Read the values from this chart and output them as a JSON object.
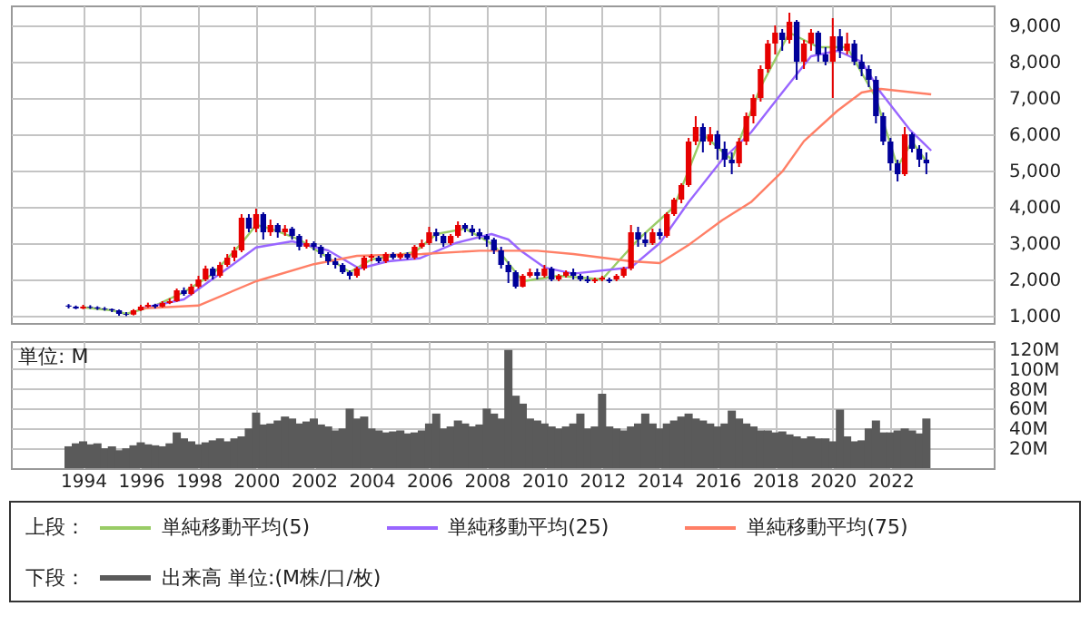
{
  "chart_data": [
    {
      "type": "candlestick",
      "annotations": [
        "上段："
      ],
      "legend": "bottom",
      "grid": true,
      "tick_labels": "y",
      "xlim": [
        "1991-07",
        "2025-08"
      ],
      "xticks": [
        "1994",
        "1996",
        "1998",
        "2000",
        "2002",
        "2004",
        "2006",
        "2008",
        "2010",
        "2012",
        "2014",
        "2016",
        "2018",
        "2020",
        "2022"
      ],
      "ylim": [
        800,
        9550
      ],
      "yticks": [
        {
          "value": 1000,
          "label": "1,000"
        },
        {
          "value": 2000,
          "label": "2,000"
        },
        {
          "value": 3000,
          "label": "3,000"
        },
        {
          "value": 4000,
          "label": "4,000"
        },
        {
          "value": 5000,
          "label": "5,000"
        },
        {
          "value": 6000,
          "label": "6,000"
        },
        {
          "value": 7000,
          "label": "7,000"
        },
        {
          "value": 8000,
          "label": "8,000"
        },
        {
          "value": 9000,
          "label": "9,000"
        }
      ],
      "x": [
        "1993-07",
        "1993-10",
        "1994-01",
        "1994-04",
        "1994-07",
        "1994-10",
        "1995-01",
        "1995-04",
        "1995-07",
        "1995-10",
        "1996-01",
        "1996-04",
        "1996-07",
        "1996-10",
        "1997-01",
        "1997-04",
        "1997-07",
        "1997-10",
        "1998-01",
        "1998-04",
        "1998-07",
        "1998-10",
        "1999-01",
        "1999-04",
        "1999-07",
        "1999-10",
        "2000-01",
        "2000-04",
        "2000-07",
        "2000-10",
        "2001-01",
        "2001-04",
        "2001-07",
        "2001-10",
        "2002-01",
        "2002-04",
        "2002-07",
        "2002-10",
        "2003-01",
        "2003-04",
        "2003-07",
        "2003-10",
        "2004-01",
        "2004-04",
        "2004-07",
        "2004-10",
        "2005-01",
        "2005-04",
        "2005-07",
        "2005-10",
        "2006-01",
        "2006-04",
        "2006-07",
        "2006-10",
        "2007-01",
        "2007-04",
        "2007-07",
        "2007-10",
        "2008-01",
        "2008-04",
        "2008-07",
        "2008-10",
        "2009-01",
        "2009-04",
        "2009-07",
        "2009-10",
        "2010-01",
        "2010-04",
        "2010-07",
        "2010-10",
        "2011-01",
        "2011-04",
        "2011-07",
        "2011-10",
        "2012-01",
        "2012-04",
        "2012-07",
        "2012-10",
        "2013-01",
        "2013-04",
        "2013-07",
        "2013-10",
        "2014-01",
        "2014-04",
        "2014-07",
        "2014-10",
        "2015-01",
        "2015-04",
        "2015-07",
        "2015-10",
        "2016-01",
        "2016-04",
        "2016-07",
        "2016-10",
        "2017-01",
        "2017-04",
        "2017-07",
        "2017-10",
        "2018-01",
        "2018-04",
        "2018-07",
        "2018-10",
        "2019-01",
        "2019-04",
        "2019-07",
        "2019-10",
        "2020-01",
        "2020-04",
        "2020-07",
        "2020-10",
        "2021-01",
        "2021-04",
        "2021-07",
        "2021-10",
        "2022-01",
        "2022-04",
        "2022-07",
        "2022-10",
        "2023-01",
        "2023-04"
      ],
      "ohlc": [
        [
          1280,
          1320,
          1200,
          1250
        ],
        [
          1250,
          1280,
          1180,
          1200
        ],
        [
          1200,
          1300,
          1180,
          1250
        ],
        [
          1250,
          1290,
          1190,
          1230
        ],
        [
          1230,
          1260,
          1160,
          1200
        ],
        [
          1200,
          1240,
          1140,
          1180
        ],
        [
          1180,
          1200,
          1100,
          1150
        ],
        [
          1150,
          1170,
          1000,
          1050
        ],
        [
          1050,
          1100,
          990,
          1030
        ],
        [
          1030,
          1180,
          1010,
          1150
        ],
        [
          1150,
          1300,
          1130,
          1250
        ],
        [
          1250,
          1360,
          1220,
          1300
        ],
        [
          1300,
          1330,
          1200,
          1250
        ],
        [
          1250,
          1400,
          1230,
          1350
        ],
        [
          1350,
          1480,
          1320,
          1400
        ],
        [
          1400,
          1750,
          1380,
          1700
        ],
        [
          1700,
          1780,
          1550,
          1600
        ],
        [
          1600,
          1880,
          1560,
          1800
        ],
        [
          1800,
          2100,
          1750,
          2000
        ],
        [
          2000,
          2380,
          1950,
          2300
        ],
        [
          2300,
          2350,
          2000,
          2100
        ],
        [
          2100,
          2480,
          2050,
          2400
        ],
        [
          2400,
          2700,
          2350,
          2600
        ],
        [
          2600,
          2900,
          2500,
          2800
        ],
        [
          2800,
          3800,
          2750,
          3700
        ],
        [
          3700,
          3800,
          3300,
          3400
        ],
        [
          3400,
          3950,
          3300,
          3800
        ],
        [
          3800,
          3850,
          3100,
          3300
        ],
        [
          3300,
          3650,
          3200,
          3500
        ],
        [
          3500,
          3550,
          3150,
          3300
        ],
        [
          3300,
          3500,
          3200,
          3400
        ],
        [
          3400,
          3450,
          3100,
          3200
        ],
        [
          3200,
          3250,
          2800,
          2900
        ],
        [
          2900,
          3100,
          2850,
          3000
        ],
        [
          3000,
          3050,
          2800,
          2900
        ],
        [
          2900,
          2950,
          2600,
          2700
        ],
        [
          2700,
          2750,
          2400,
          2500
        ],
        [
          2500,
          2600,
          2300,
          2400
        ],
        [
          2400,
          2450,
          2150,
          2200
        ],
        [
          2200,
          2250,
          2000,
          2100
        ],
        [
          2100,
          2350,
          2050,
          2300
        ],
        [
          2300,
          2650,
          2250,
          2600
        ],
        [
          2600,
          2700,
          2500,
          2650
        ],
        [
          2600,
          2650,
          2450,
          2500
        ],
        [
          2500,
          2750,
          2450,
          2700
        ],
        [
          2700,
          2750,
          2550,
          2600
        ],
        [
          2600,
          2750,
          2550,
          2700
        ],
        [
          2700,
          2750,
          2550,
          2600
        ],
        [
          2600,
          2950,
          2550,
          2900
        ],
        [
          2900,
          3100,
          2850,
          3000
        ],
        [
          3000,
          3450,
          2950,
          3300
        ],
        [
          3300,
          3400,
          3050,
          3200
        ],
        [
          3200,
          3250,
          2900,
          3000
        ],
        [
          3000,
          3250,
          2950,
          3200
        ],
        [
          3200,
          3600,
          3150,
          3500
        ],
        [
          3500,
          3550,
          3300,
          3400
        ],
        [
          3400,
          3500,
          3200,
          3300
        ],
        [
          3300,
          3400,
          3100,
          3200
        ],
        [
          3200,
          3250,
          2900,
          3100
        ],
        [
          3100,
          3150,
          2700,
          2800
        ],
        [
          2800,
          2900,
          2300,
          2400
        ],
        [
          2400,
          2500,
          1900,
          2200
        ],
        [
          2200,
          2250,
          1750,
          1800
        ],
        [
          1800,
          2150,
          1780,
          2100
        ],
        [
          2100,
          2300,
          2050,
          2200
        ],
        [
          2200,
          2300,
          2000,
          2100
        ],
        [
          2100,
          2400,
          2050,
          2300
        ],
        [
          2300,
          2350,
          1950,
          2000
        ],
        [
          2000,
          2150,
          1950,
          2100
        ],
        [
          2100,
          2250,
          2050,
          2200
        ],
        [
          2200,
          2300,
          2000,
          2100
        ],
        [
          2100,
          2150,
          1950,
          2000
        ],
        [
          2000,
          2100,
          1900,
          1950
        ],
        [
          1950,
          2050,
          1900,
          2000
        ],
        [
          2000,
          2100,
          1950,
          2050
        ],
        [
          2000,
          2050,
          1900,
          1950
        ],
        [
          2000,
          2150,
          1950,
          2100
        ],
        [
          2100,
          2350,
          2050,
          2300
        ],
        [
          2300,
          3500,
          2250,
          3300
        ],
        [
          3300,
          3450,
          2900,
          3100
        ],
        [
          3100,
          3300,
          2900,
          3000
        ],
        [
          3000,
          3400,
          2950,
          3300
        ],
        [
          3300,
          3400,
          3100,
          3200
        ],
        [
          3200,
          3850,
          3150,
          3800
        ],
        [
          3800,
          4250,
          3750,
          4200
        ],
        [
          4200,
          4650,
          4100,
          4600
        ],
        [
          4600,
          5900,
          4550,
          5800
        ],
        [
          5800,
          6500,
          5700,
          6200
        ],
        [
          6200,
          6300,
          5500,
          5800
        ],
        [
          5800,
          6200,
          5700,
          6000
        ],
        [
          6000,
          6100,
          5300,
          5600
        ],
        [
          5600,
          5800,
          5100,
          5300
        ],
        [
          5300,
          5500,
          4900,
          5200
        ],
        [
          5200,
          5900,
          5100,
          5800
        ],
        [
          5800,
          6600,
          5700,
          6500
        ],
        [
          6500,
          7100,
          6300,
          7000
        ],
        [
          7000,
          7900,
          6900,
          7800
        ],
        [
          7800,
          8600,
          7700,
          8500
        ],
        [
          8500,
          9000,
          8200,
          8800
        ],
        [
          8800,
          8900,
          8300,
          8600
        ],
        [
          8600,
          9350,
          8500,
          9100
        ],
        [
          9100,
          9150,
          7500,
          8000
        ],
        [
          8000,
          8600,
          7800,
          8500
        ],
        [
          8500,
          8900,
          8300,
          8800
        ],
        [
          8800,
          8850,
          8000,
          8200
        ],
        [
          8200,
          8400,
          7900,
          8000
        ],
        [
          8000,
          9200,
          7000,
          8700
        ],
        [
          8700,
          8900,
          8100,
          8300
        ],
        [
          8300,
          8800,
          8200,
          8500
        ],
        [
          8500,
          8600,
          7900,
          8000
        ],
        [
          8000,
          8200,
          7600,
          7800
        ],
        [
          7800,
          7900,
          7300,
          7500
        ],
        [
          7500,
          7600,
          6300,
          6500
        ],
        [
          6500,
          6600,
          5700,
          5800
        ],
        [
          5800,
          5900,
          5000,
          5200
        ],
        [
          5200,
          5300,
          4700,
          4900
        ],
        [
          4900,
          6200,
          4850,
          6000
        ],
        [
          6000,
          6050,
          5500,
          5600
        ],
        [
          5600,
          5700,
          5100,
          5300
        ],
        [
          5300,
          5500,
          4900,
          5200
        ]
      ],
      "colors": [
        "#000099",
        "#000099",
        "#e60000",
        "#000099",
        "#000099",
        "#000099",
        "#000099",
        "#000099",
        "#000099",
        "#e60000",
        "#e60000",
        "#e60000",
        "#000099",
        "#e60000",
        "#e60000",
        "#e60000",
        "#000099",
        "#e60000",
        "#e60000",
        "#e60000",
        "#000099",
        "#e60000",
        "#e60000",
        "#e60000",
        "#e60000",
        "#000099",
        "#e60000",
        "#000099",
        "#e60000",
        "#000099",
        "#e60000",
        "#000099",
        "#000099",
        "#e60000",
        "#000099",
        "#000099",
        "#000099",
        "#000099",
        "#000099",
        "#000099",
        "#e60000",
        "#e60000",
        "#e60000",
        "#000099",
        "#e60000",
        "#000099",
        "#e60000",
        "#000099",
        "#e60000",
        "#e60000",
        "#e60000",
        "#000099",
        "#000099",
        "#e60000",
        "#e60000",
        "#000099",
        "#000099",
        "#000099",
        "#000099",
        "#000099",
        "#000099",
        "#000099",
        "#000099",
        "#e60000",
        "#e60000",
        "#000099",
        "#e60000",
        "#000099",
        "#e60000",
        "#e60000",
        "#000099",
        "#000099",
        "#000099",
        "#e60000",
        "#e60000",
        "#000099",
        "#e60000",
        "#e60000",
        "#e60000",
        "#000099",
        "#000099",
        "#e60000",
        "#000099",
        "#e60000",
        "#e60000",
        "#e60000",
        "#e60000",
        "#e60000",
        "#000099",
        "#e60000",
        "#000099",
        "#000099",
        "#000099",
        "#e60000",
        "#e60000",
        "#e60000",
        "#e60000",
        "#e60000",
        "#e60000",
        "#000099",
        "#e60000",
        "#000099",
        "#e60000",
        "#e60000",
        "#000099",
        "#000099",
        "#e60000",
        "#000099",
        "#e60000",
        "#000099",
        "#000099",
        "#000099",
        "#000099",
        "#000099",
        "#000099",
        "#000099",
        "#e60000",
        "#000099",
        "#000099",
        "#000099"
      ],
      "series": [
        {
          "type": "line",
          "name": "単純移動平均(5)",
          "color": "#99cc66",
          "x": [
            "1994-01",
            "1995-01",
            "1995-07",
            "1996-07",
            "1997-07",
            "1998-07",
            "1999-07",
            "2000-01",
            "2000-07",
            "2001-07",
            "2002-07",
            "2003-04",
            "2004-01",
            "2005-07",
            "2006-04",
            "2007-04",
            "2008-04",
            "2009-04",
            "2010-07",
            "2012-01",
            "2013-04",
            "2014-07",
            "2015-07",
            "2016-07",
            "2017-07",
            "2018-07",
            "2019-07",
            "2020-07",
            "2021-07",
            "2022-04",
            "2022-10",
            "2023-04"
          ],
          "values": [
            1230,
            1150,
            1050,
            1280,
            1650,
            2150,
            3000,
            3500,
            3400,
            3100,
            2600,
            2200,
            2550,
            2750,
            3250,
            3400,
            2950,
            1950,
            2100,
            2000,
            3100,
            4000,
            6000,
            5300,
            7300,
            8800,
            8400,
            8400,
            7000,
            5100,
            5800,
            5250
          ]
        },
        {
          "type": "line",
          "name": "単純移動平均(25)",
          "color": "#9966ff",
          "x": [
            "1996-01",
            "1997-07",
            "1999-01",
            "2000-01",
            "2001-04",
            "2002-07",
            "2003-08",
            "2004-08",
            "2005-09",
            "2006-12",
            "2008-03",
            "2008-10",
            "2009-03",
            "2010-01",
            "2011-01",
            "2013-01",
            "2014-01",
            "2015-01",
            "2016-03",
            "2017-03",
            "2018-04",
            "2019-04",
            "2020-03",
            "2021-01",
            "2021-09",
            "2022-09",
            "2023-06"
          ],
          "values": [
            1200,
            1450,
            2300,
            2880,
            3050,
            2800,
            2300,
            2500,
            2580,
            3000,
            3250,
            3100,
            2800,
            2330,
            2160,
            2330,
            3000,
            4130,
            5300,
            6050,
            7150,
            8150,
            8300,
            8000,
            7150,
            6130,
            5550
          ]
        },
        {
          "type": "line",
          "name": "単純移動平均(75)",
          "color": "#ff7f66",
          "x": [
            "1996-01",
            "1998-01",
            "2000-01",
            "2002-01",
            "2003-07",
            "2005-10",
            "2007-10",
            "2009-10",
            "2011-01",
            "2013-01",
            "2014-01",
            "2015-01",
            "2016-03",
            "2017-03",
            "2018-04",
            "2019-01",
            "2020-03",
            "2021-01",
            "2021-09",
            "2023-06"
          ],
          "values": [
            1200,
            1280,
            1950,
            2420,
            2650,
            2700,
            2790,
            2790,
            2700,
            2500,
            2450,
            2950,
            3630,
            4130,
            4970,
            5810,
            6650,
            7150,
            7250,
            7100
          ]
        }
      ]
    },
    {
      "type": "bar",
      "annotations": [
        "単位: M",
        "下段："
      ],
      "legend": "bottom",
      "grid": true,
      "xlim": [
        "1991-07",
        "2025-08"
      ],
      "xticks": [
        "1994",
        "1996",
        "1998",
        "2000",
        "2002",
        "2004",
        "2006",
        "2008",
        "2010",
        "2012",
        "2014",
        "2016",
        "2018",
        "2020",
        "2022"
      ],
      "ylim": [
        0,
        128
      ],
      "yticks": [
        {
          "value": 20,
          "label": "20M"
        },
        {
          "value": 40,
          "label": "40M"
        },
        {
          "value": 60,
          "label": "60M"
        },
        {
          "value": 80,
          "label": "80M"
        },
        {
          "value": 100,
          "label": "100M"
        },
        {
          "value": 120,
          "label": "120M"
        }
      ],
      "x": [
        "1993-07",
        "1993-10",
        "1994-01",
        "1994-04",
        "1994-07",
        "1994-10",
        "1995-01",
        "1995-04",
        "1995-07",
        "1995-10",
        "1996-01",
        "1996-04",
        "1996-07",
        "1996-10",
        "1997-01",
        "1997-04",
        "1997-07",
        "1997-10",
        "1998-01",
        "1998-04",
        "1998-07",
        "1998-10",
        "1999-01",
        "1999-04",
        "1999-07",
        "1999-10",
        "2000-01",
        "2000-04",
        "2000-07",
        "2000-10",
        "2001-01",
        "2001-04",
        "2001-07",
        "2001-10",
        "2002-01",
        "2002-04",
        "2002-07",
        "2002-10",
        "2003-01",
        "2003-04",
        "2003-07",
        "2003-10",
        "2004-01",
        "2004-04",
        "2004-07",
        "2004-10",
        "2005-01",
        "2005-04",
        "2005-07",
        "2005-10",
        "2006-01",
        "2006-04",
        "2006-07",
        "2006-10",
        "2007-01",
        "2007-04",
        "2007-07",
        "2007-10",
        "2008-01",
        "2008-04",
        "2008-07",
        "2008-10",
        "2009-01",
        "2009-04",
        "2009-07",
        "2009-10",
        "2010-01",
        "2010-04",
        "2010-07",
        "2010-10",
        "2011-01",
        "2011-04",
        "2011-07",
        "2011-10",
        "2012-01",
        "2012-04",
        "2012-07",
        "2012-10",
        "2013-01",
        "2013-04",
        "2013-07",
        "2013-10",
        "2014-01",
        "2014-04",
        "2014-07",
        "2014-10",
        "2015-01",
        "2015-04",
        "2015-07",
        "2015-10",
        "2016-01",
        "2016-04",
        "2016-07",
        "2016-10",
        "2017-01",
        "2017-04",
        "2017-07",
        "2017-10",
        "2018-01",
        "2018-04",
        "2018-07",
        "2018-10",
        "2019-01",
        "2019-04",
        "2019-07",
        "2019-10",
        "2020-01",
        "2020-04",
        "2020-07",
        "2020-10",
        "2021-01",
        "2021-04",
        "2021-07",
        "2021-10",
        "2022-01",
        "2022-04",
        "2022-07",
        "2022-10",
        "2023-01",
        "2023-04"
      ],
      "series": [
        {
          "name": "出来高 単位:(M株/口/枚)",
          "color": "#5a5a5a",
          "values": [
            22,
            25,
            27,
            24,
            25,
            20,
            22,
            18,
            20,
            23,
            26,
            24,
            23,
            22,
            25,
            36,
            30,
            27,
            24,
            26,
            28,
            30,
            27,
            30,
            32,
            40,
            56,
            44,
            45,
            48,
            52,
            50,
            45,
            47,
            50,
            44,
            42,
            38,
            40,
            60,
            50,
            52,
            40,
            38,
            36,
            37,
            38,
            35,
            36,
            38,
            45,
            55,
            40,
            42,
            48,
            45,
            42,
            44,
            60,
            55,
            50,
            119,
            73,
            65,
            50,
            48,
            45,
            42,
            40,
            42,
            45,
            55,
            40,
            42,
            75,
            42,
            40,
            38,
            42,
            45,
            55,
            45,
            40,
            45,
            48,
            52,
            55,
            50,
            48,
            45,
            42,
            45,
            58,
            50,
            45,
            42,
            38,
            38,
            36,
            37,
            34,
            32,
            30,
            32,
            30,
            30,
            27,
            59,
            32,
            27,
            28,
            40,
            48,
            36,
            36,
            38,
            40,
            38,
            35,
            50
          ]
        }
      ]
    }
  ]
}
